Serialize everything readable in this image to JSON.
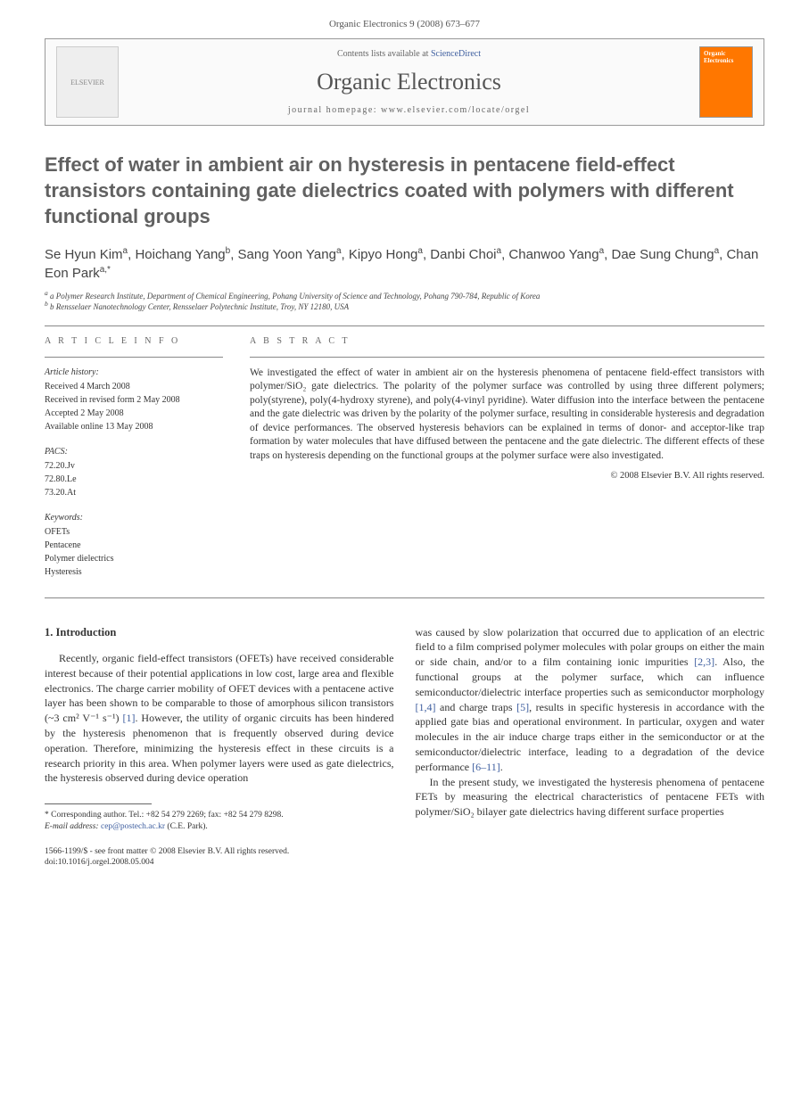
{
  "journal_ref": "Organic Electronics 9 (2008) 673–677",
  "header": {
    "contents_prefix": "Contents lists available at ",
    "contents_link": "ScienceDirect",
    "journal_name": "Organic Electronics",
    "homepage_label": "journal homepage: www.elsevier.com/locate/orgel",
    "publisher_label": "ELSEVIER",
    "cover_text": "Organic Electronics"
  },
  "title": "Effect of water in ambient air on hysteresis in pentacene field-effect transistors containing gate dielectrics coated with polymers with different functional groups",
  "authors_html": "Se Hyun Kim<sup>a</sup>, Hoichang Yang<sup>b</sup>, Sang Yoon Yang<sup>a</sup>, Kipyo Hong<sup>a</sup>, Danbi Choi<sup>a</sup>, Chanwoo Yang<sup>a</sup>, Dae Sung Chung<sup>a</sup>, Chan Eon Park<sup>a,*</sup>",
  "affiliations": [
    "a Polymer Research Institute, Department of Chemical Engineering, Pohang University of Science and Technology, Pohang 790-784, Republic of Korea",
    "b Rensselaer Nanotechnology Center, Rensselaer Polytechnic Institute, Troy, NY 12180, USA"
  ],
  "article_info": {
    "heading": "A R T I C L E   I N F O",
    "history_label": "Article history:",
    "history": [
      "Received 4 March 2008",
      "Received in revised form 2 May 2008",
      "Accepted 2 May 2008",
      "Available online 13 May 2008"
    ],
    "pacs_label": "PACS:",
    "pacs": [
      "72.20.Jv",
      "72.80.Le",
      "73.20.At"
    ],
    "keywords_label": "Keywords:",
    "keywords": [
      "OFETs",
      "Pentacene",
      "Polymer dielectrics",
      "Hysteresis"
    ]
  },
  "abstract": {
    "heading": "A B S T R A C T",
    "text": "We investigated the effect of water in ambient air on the hysteresis phenomena of pentacene field-effect transistors with polymer/SiO₂ gate dielectrics. The polarity of the polymer surface was controlled by using three different polymers; poly(styrene), poly(4-hydroxy styrene), and poly(4-vinyl pyridine). Water diffusion into the interface between the pentacene and the gate dielectric was driven by the polarity of the polymer surface, resulting in considerable hysteresis and degradation of device performances. The observed hysteresis behaviors can be explained in terms of donor- and acceptor-like trap formation by water molecules that have diffused between the pentacene and the gate dielectric. The different effects of these traps on hysteresis depending on the functional groups at the polymer surface were also investigated.",
    "copyright": "© 2008 Elsevier B.V. All rights reserved."
  },
  "section1": {
    "heading": "1. Introduction",
    "para1_pre": "Recently, organic field-effect transistors (OFETs) have received considerable interest because of their potential applications in low cost, large area and flexible electronics. The charge carrier mobility of OFET devices with a pentacene active layer has been shown to be comparable to those of amorphous silicon transistors (~3 cm² V⁻¹ s⁻¹) ",
    "ref1": "[1]",
    "para1_post": ". However, the utility of organic circuits has been hindered by the hysteresis phenomenon that is frequently observed during device operation. Therefore, minimizing the hysteresis effect in these circuits is a research priority in this area. When polymer layers were used as gate dielectrics, the hysteresis observed during device operation",
    "para2_a": "was caused by slow polarization that occurred due to application of an electric field to a film comprised polymer molecules with polar groups on either the main or side chain, and/or to a film containing ionic impurities ",
    "ref23": "[2,3]",
    "para2_b": ". Also, the functional groups at the polymer surface, which can influence semiconductor/dielectric interface properties such as semiconductor morphology ",
    "ref14": "[1,4]",
    "para2_c": " and charge traps ",
    "ref5": "[5]",
    "para2_d": ", results in specific hysteresis in accordance with the applied gate bias and operational environment. In particular, oxygen and water molecules in the air induce charge traps either in the semiconductor or at the semiconductor/dielectric interface, leading to a degradation of the device performance ",
    "ref611": "[6–11]",
    "para2_e": ".",
    "para3": "In the present study, we investigated the hysteresis phenomena of pentacene FETs by measuring the electrical characteristics of pentacene FETs with polymer/SiO₂ bilayer gate dielectrics having different surface properties"
  },
  "footnote": {
    "corr": "* Corresponding author. Tel.: +82 54 279 2269; fax: +82 54 279 8298.",
    "email_label": "E-mail address: ",
    "email": "cep@postech.ac.kr",
    "email_suffix": " (C.E. Park)."
  },
  "bottom": {
    "line1": "1566-1199/$ - see front matter © 2008 Elsevier B.V. All rights reserved.",
    "line2": "doi:10.1016/j.orgel.2008.05.004"
  },
  "colors": {
    "link": "#4060a0",
    "title": "#616161",
    "cover_bg": "#ff7700"
  }
}
